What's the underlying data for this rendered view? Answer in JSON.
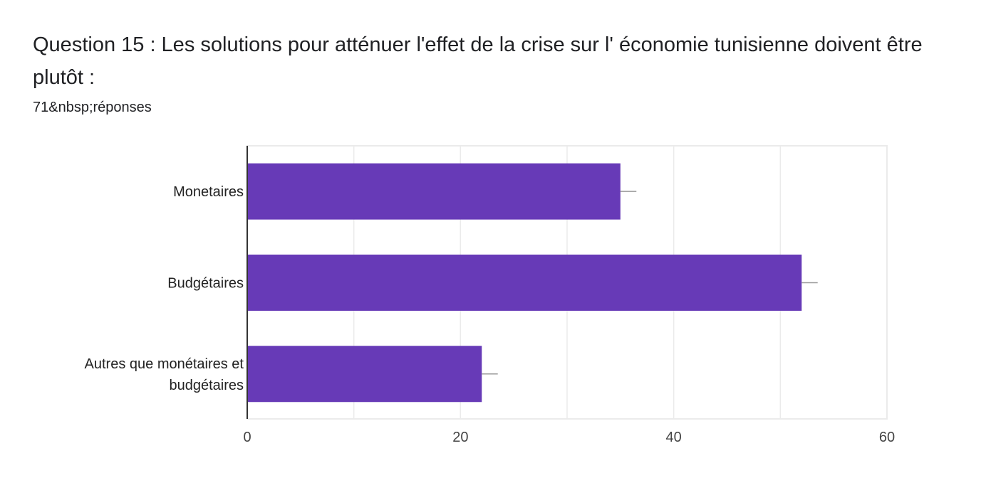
{
  "header": {
    "title": "Question 15 : Les solutions pour atténuer l'effet de la crise sur l' économie tunisienne doivent être plutôt  :",
    "responses": "71&nbsp;réponses"
  },
  "colors": {
    "bar": "#673ab7",
    "grid": "#ebebeb",
    "axis": "#333333",
    "error_bar": "#999999"
  },
  "chart_data": {
    "type": "bar",
    "orientation": "horizontal",
    "categories": [
      [
        "Monetaires"
      ],
      [
        "Budgétaires"
      ],
      [
        "Autres que monétaires et",
        "budgétaires"
      ]
    ],
    "values": [
      35,
      52,
      22
    ],
    "error_bar_upper": [
      36.5,
      53.5,
      23.5
    ],
    "xlim": [
      0,
      60
    ],
    "xticks": [
      0,
      20,
      40,
      60
    ],
    "minor_gridlines": [
      10,
      30,
      50
    ],
    "title": "",
    "xlabel": "",
    "ylabel": ""
  }
}
